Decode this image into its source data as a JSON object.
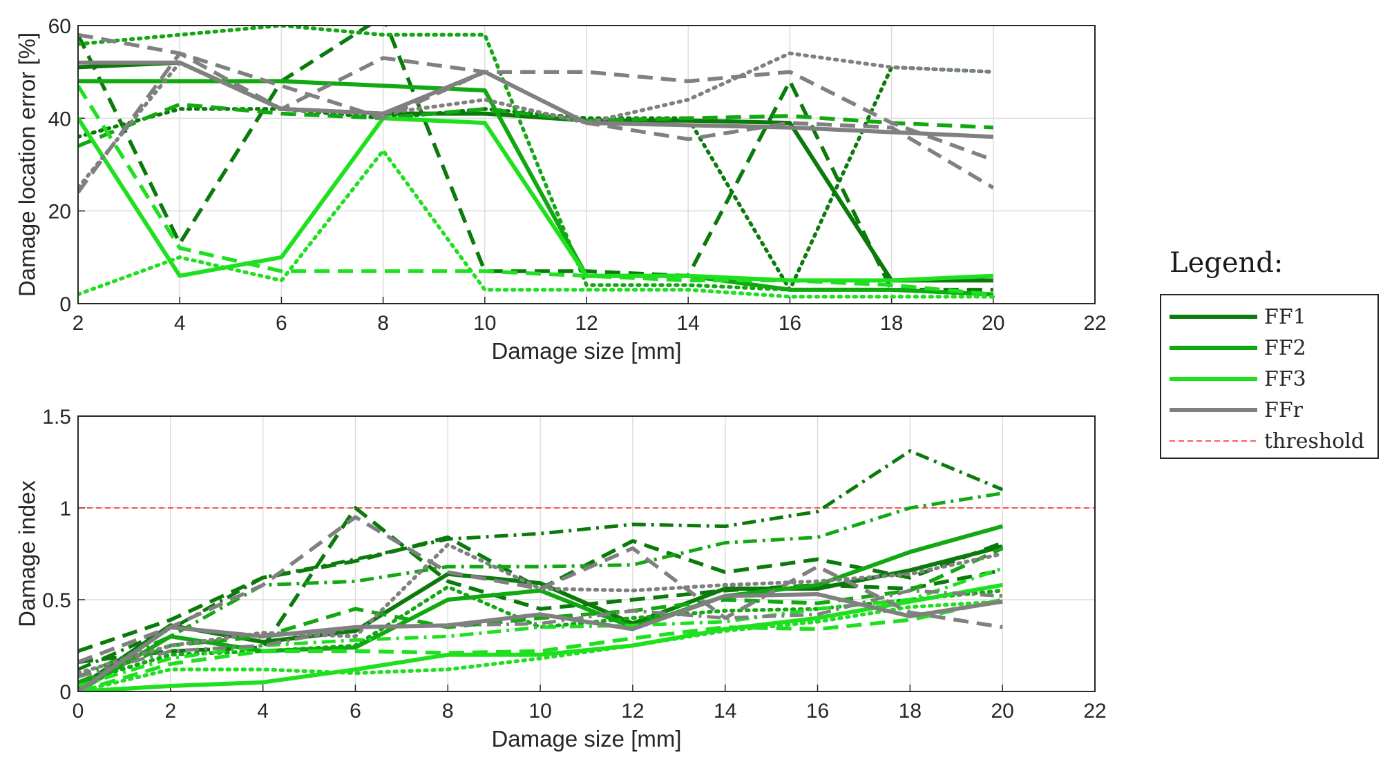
{
  "colors": {
    "FF1": "#0b7a0b",
    "FF2": "#11a811",
    "FF3": "#1fe01f",
    "FFr": "#808080",
    "threshold": "#ff2020",
    "grid": "#dcdcdc",
    "axis": "#262626"
  },
  "chart_data": [
    {
      "type": "line",
      "xlabel": "Damage size [mm]",
      "ylabel": "Damage location error [%]",
      "xlim": [
        2,
        22
      ],
      "ylim": [
        0,
        60
      ],
      "xticks": [
        2,
        4,
        6,
        8,
        10,
        12,
        14,
        16,
        18,
        20,
        22
      ],
      "yticks": [
        0,
        20,
        40,
        60
      ],
      "grid": true,
      "series": [
        {
          "name": "FF1",
          "group": "FF1",
          "style": "solid",
          "x": [
            2,
            4,
            6,
            8,
            10,
            12,
            14,
            16,
            18,
            20
          ],
          "y": [
            51,
            52,
            42,
            41,
            41,
            39.5,
            39.5,
            39,
            5,
            5
          ]
        },
        {
          "name": "FF1",
          "group": "FF1",
          "style": "dashed",
          "x": [
            2,
            4,
            6,
            8,
            10,
            12,
            14,
            16,
            18,
            20
          ],
          "y": [
            58,
            13,
            48,
            62,
            7,
            7,
            6,
            48,
            3,
            3
          ]
        },
        {
          "name": "FF1",
          "group": "FF1",
          "style": "dotted",
          "x": [
            2,
            4,
            6,
            8,
            10,
            12,
            14,
            16,
            18,
            20
          ],
          "y": [
            36,
            42,
            42,
            40,
            42,
            40,
            40,
            3,
            51,
            50
          ]
        },
        {
          "name": "FF2",
          "group": "FF2",
          "style": "solid",
          "x": [
            2,
            4,
            6,
            8,
            10,
            12,
            14,
            16,
            18,
            20
          ],
          "y": [
            48,
            48,
            48,
            47,
            46,
            6,
            6,
            3,
            3,
            2
          ]
        },
        {
          "name": "FF2",
          "group": "FF2",
          "style": "dashed",
          "x": [
            2,
            4,
            6,
            8,
            10,
            12,
            14,
            16,
            18,
            20
          ],
          "y": [
            34,
            43,
            41,
            40,
            42,
            39.5,
            40,
            40.5,
            39,
            38
          ]
        },
        {
          "name": "FF2",
          "group": "FF2",
          "style": "dotted",
          "x": [
            2,
            4,
            6,
            8,
            10,
            12,
            14,
            16,
            18,
            20
          ],
          "y": [
            56,
            58,
            60,
            58,
            58,
            4,
            4,
            3,
            3,
            2
          ]
        },
        {
          "name": "FF3",
          "group": "FF3",
          "style": "solid",
          "x": [
            2,
            4,
            6,
            8,
            10,
            12,
            14,
            16,
            18,
            20
          ],
          "y": [
            40,
            6,
            10,
            40,
            39,
            6,
            6,
            5,
            5,
            6
          ]
        },
        {
          "name": "FF3",
          "group": "FF3",
          "style": "dashed",
          "x": [
            2,
            4,
            6,
            8,
            10,
            12,
            14,
            16,
            18,
            20
          ],
          "y": [
            47,
            12,
            7,
            7,
            7,
            6,
            5,
            5,
            4,
            2
          ]
        },
        {
          "name": "FF3",
          "group": "FF3",
          "style": "dotted",
          "x": [
            2,
            4,
            6,
            8,
            10,
            12,
            14,
            16,
            18,
            20
          ],
          "y": [
            2,
            10,
            5,
            33,
            3,
            3,
            3,
            1.5,
            1.5,
            1.5
          ]
        },
        {
          "name": "FFr",
          "group": "FFr",
          "style": "solid",
          "x": [
            2,
            4,
            6,
            8,
            10,
            12,
            14,
            16,
            18,
            20
          ],
          "y": [
            52,
            52,
            42,
            41,
            50,
            39,
            38.5,
            38,
            37,
            36
          ]
        },
        {
          "name": "FFr",
          "group": "FFr",
          "style": "dashed",
          "x": [
            2,
            4,
            6,
            8,
            10,
            12,
            14,
            16,
            18,
            20
          ],
          "y": [
            58,
            54,
            47,
            40,
            50,
            39,
            35.5,
            39,
            38,
            25
          ]
        },
        {
          "name": "FFr",
          "group": "FFr",
          "style": "dashed",
          "x": [
            2,
            4,
            6,
            8,
            10,
            12,
            14,
            16,
            18,
            20
          ],
          "y": [
            24,
            54,
            42,
            53,
            50,
            50,
            48,
            50,
            39,
            31
          ]
        },
        {
          "name": "FFr",
          "group": "FFr",
          "style": "dotted",
          "x": [
            2,
            4,
            6,
            8,
            10,
            12,
            14,
            16,
            18,
            20
          ],
          "y": [
            25,
            52,
            42,
            41,
            44,
            39,
            44,
            54,
            51,
            50
          ]
        }
      ]
    },
    {
      "type": "line",
      "xlabel": "Damage size [mm]",
      "ylabel": "Damage index",
      "xlim": [
        0,
        22
      ],
      "ylim": [
        0,
        1.5
      ],
      "xticks": [
        0,
        2,
        4,
        6,
        8,
        10,
        12,
        14,
        16,
        18,
        20,
        22
      ],
      "yticks": [
        0,
        0.5,
        1,
        1.5
      ],
      "ytick_labels": [
        "0",
        "0.5",
        "1",
        "1.5"
      ],
      "grid": true,
      "threshold": 1,
      "series": [
        {
          "name": "FF1",
          "group": "FF1",
          "style": "solid",
          "x": [
            0,
            2,
            4,
            6,
            8,
            10,
            12,
            14,
            16,
            18,
            20
          ],
          "y": [
            0.02,
            0.36,
            0.27,
            0.33,
            0.64,
            0.59,
            0.37,
            0.56,
            0.56,
            0.66,
            0.79
          ]
        },
        {
          "name": "FF1",
          "group": "FF1",
          "style": "dashed",
          "x": [
            0,
            2,
            4,
            6,
            8,
            10,
            12,
            14,
            16,
            18,
            20
          ],
          "y": [
            0.22,
            0.39,
            0.62,
            0.71,
            0.84,
            0.56,
            0.82,
            0.65,
            0.72,
            0.62,
            0.81
          ]
        },
        {
          "name": "FF1",
          "group": "FF1",
          "style": "dashdot",
          "x": [
            0,
            2,
            4,
            6,
            8,
            10,
            12,
            14,
            16,
            18,
            20
          ],
          "y": [
            0.12,
            0.34,
            0.62,
            0.72,
            0.83,
            0.86,
            0.91,
            0.9,
            0.98,
            1.31,
            1.1
          ]
        },
        {
          "name": "FF1",
          "group": "FF1",
          "style": "dashed",
          "x": [
            0,
            2,
            4,
            6,
            8,
            10,
            12,
            14,
            16,
            18,
            20
          ],
          "y": [
            0.16,
            0.22,
            0.24,
            1.0,
            0.6,
            0.45,
            0.5,
            0.55,
            0.58,
            0.56,
            0.66
          ]
        },
        {
          "name": "FF2",
          "group": "FF2",
          "style": "solid",
          "x": [
            0,
            2,
            4,
            6,
            8,
            10,
            12,
            14,
            16,
            18,
            20
          ],
          "y": [
            0.0,
            0.3,
            0.22,
            0.24,
            0.5,
            0.55,
            0.35,
            0.52,
            0.58,
            0.76,
            0.9
          ]
        },
        {
          "name": "FF2",
          "group": "FF2",
          "style": "dashdot",
          "x": [
            0,
            2,
            4,
            6,
            8,
            10,
            12,
            14,
            16,
            18,
            20
          ],
          "y": [
            0.08,
            0.3,
            0.58,
            0.6,
            0.68,
            0.68,
            0.69,
            0.81,
            0.84,
            1.0,
            1.08
          ]
        },
        {
          "name": "FF2",
          "group": "FF2",
          "style": "dashed",
          "x": [
            0,
            2,
            4,
            6,
            8,
            10,
            12,
            14,
            16,
            18,
            20
          ],
          "y": [
            0.05,
            0.25,
            0.3,
            0.45,
            0.35,
            0.4,
            0.44,
            0.5,
            0.48,
            0.55,
            0.78
          ]
        },
        {
          "name": "FF2",
          "group": "FF2",
          "style": "dotted",
          "x": [
            0,
            2,
            4,
            6,
            8,
            10,
            12,
            14,
            16,
            18,
            20
          ],
          "y": [
            0.05,
            0.2,
            0.22,
            0.25,
            0.57,
            0.35,
            0.4,
            0.44,
            0.45,
            0.5,
            0.55
          ]
        },
        {
          "name": "FF3",
          "group": "FF3",
          "style": "solid",
          "x": [
            0,
            2,
            4,
            6,
            8,
            10,
            12,
            14,
            16,
            18,
            20
          ],
          "y": [
            0.0,
            0.03,
            0.05,
            0.12,
            0.2,
            0.2,
            0.25,
            0.34,
            0.4,
            0.49,
            0.58
          ]
        },
        {
          "name": "FF3",
          "group": "FF3",
          "style": "dashed",
          "x": [
            0,
            2,
            4,
            6,
            8,
            10,
            12,
            14,
            16,
            18,
            20
          ],
          "y": [
            0.0,
            0.15,
            0.22,
            0.22,
            0.21,
            0.22,
            0.29,
            0.35,
            0.34,
            0.39,
            0.5
          ]
        },
        {
          "name": "FF3",
          "group": "FF3",
          "style": "dotted",
          "x": [
            0,
            2,
            4,
            6,
            8,
            10,
            12,
            14,
            16,
            18,
            20
          ],
          "y": [
            0.0,
            0.12,
            0.12,
            0.1,
            0.12,
            0.18,
            0.25,
            0.33,
            0.38,
            0.46,
            0.49
          ]
        },
        {
          "name": "FF3",
          "group": "FF3",
          "style": "dashdot",
          "x": [
            0,
            2,
            4,
            6,
            8,
            10,
            12,
            14,
            16,
            18,
            20
          ],
          "y": [
            0.03,
            0.18,
            0.25,
            0.28,
            0.3,
            0.35,
            0.36,
            0.38,
            0.45,
            0.5,
            0.67
          ]
        },
        {
          "name": "FFr",
          "group": "FFr",
          "style": "solid",
          "x": [
            0,
            2,
            4,
            6,
            8,
            10,
            12,
            14,
            16,
            18,
            20
          ],
          "y": [
            0.0,
            0.35,
            0.3,
            0.35,
            0.36,
            0.42,
            0.34,
            0.52,
            0.53,
            0.41,
            0.49
          ]
        },
        {
          "name": "FFr",
          "group": "FFr",
          "style": "dashed",
          "x": [
            0,
            2,
            4,
            6,
            8,
            10,
            12,
            14,
            16,
            18,
            20
          ],
          "y": [
            0.16,
            0.35,
            0.58,
            0.95,
            0.65,
            0.56,
            0.78,
            0.4,
            0.68,
            0.43,
            0.35
          ]
        },
        {
          "name": "FFr",
          "group": "FFr",
          "style": "dotted",
          "x": [
            0,
            2,
            4,
            6,
            8,
            10,
            12,
            14,
            16,
            18,
            20
          ],
          "y": [
            0.1,
            0.25,
            0.32,
            0.3,
            0.8,
            0.56,
            0.55,
            0.58,
            0.6,
            0.64,
            0.75
          ]
        },
        {
          "name": "FFr",
          "group": "FFr",
          "style": "dashdot",
          "x": [
            0,
            2,
            4,
            6,
            8,
            10,
            12,
            14,
            16,
            18,
            20
          ],
          "y": [
            0.08,
            0.22,
            0.25,
            0.35,
            0.36,
            0.37,
            0.44,
            0.4,
            0.42,
            0.55,
            0.52
          ]
        }
      ]
    }
  ],
  "legend": {
    "title": "Legend:",
    "entries": [
      {
        "label": "FF1",
        "group": "FF1",
        "style": "solid"
      },
      {
        "label": "FF2",
        "group": "FF2",
        "style": "solid"
      },
      {
        "label": "FF3",
        "group": "FF3",
        "style": "solid"
      },
      {
        "label": "FFr",
        "group": "FFr",
        "style": "solid"
      },
      {
        "label": "threshold",
        "group": "threshold",
        "style": "threshold"
      }
    ]
  }
}
